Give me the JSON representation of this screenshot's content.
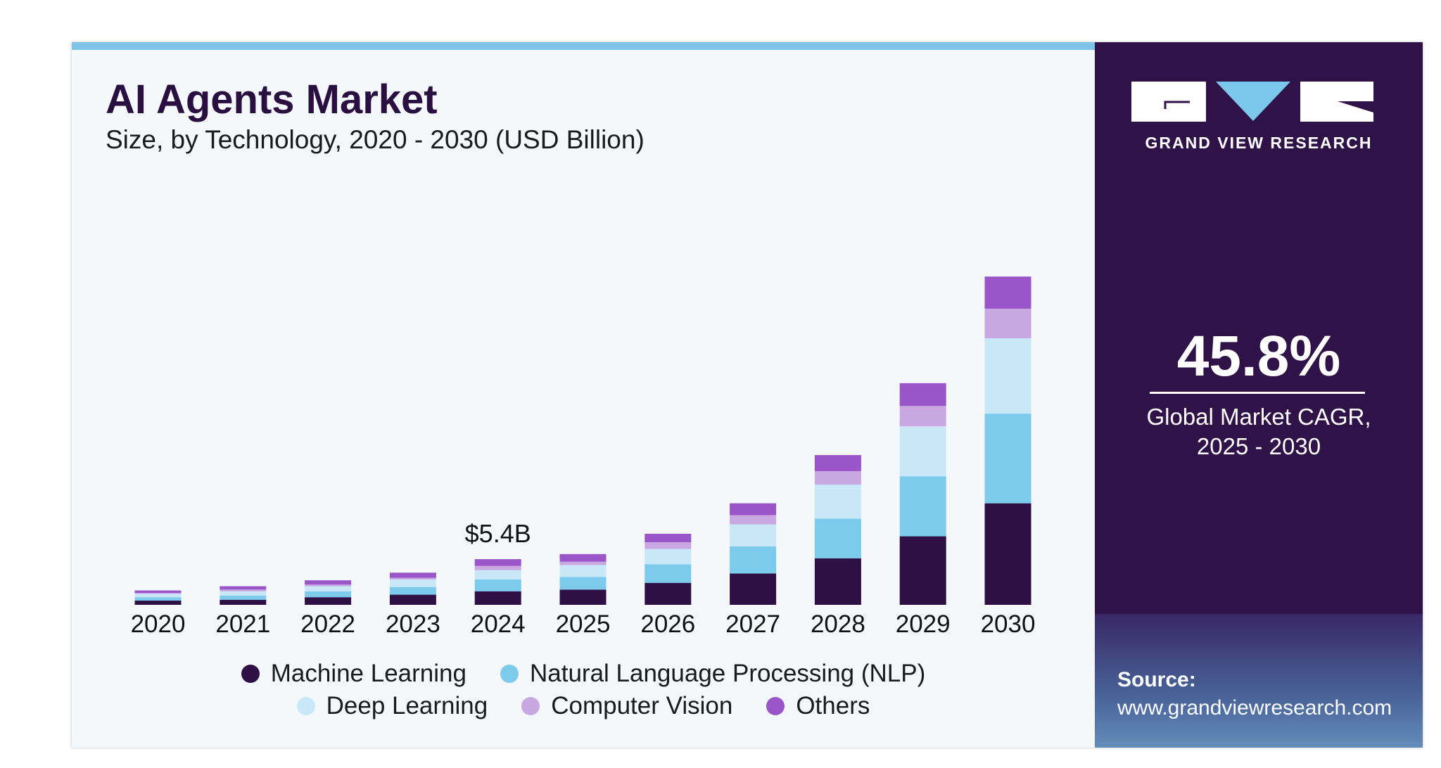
{
  "title": "AI Agents Market",
  "subtitle": "Size, by Technology, 2020 - 2030 (USD Billion)",
  "brand": {
    "name": "GRAND VIEW RESEARCH"
  },
  "highlight": {
    "value": "45.8%",
    "label_line1": "Global Market CAGR,",
    "label_line2": "2025 - 2030"
  },
  "source": {
    "label": "Source:",
    "url": "www.grandviewresearch.com"
  },
  "colors": {
    "Machine Learning": "#2e1045",
    "Natural Language Processing (NLP)": "#7ccaec",
    "Deep Learning": "#c8e8f8",
    "Computer Vision": "#c9a8e2",
    "Others": "#9a55c8",
    "panel": "#2f1248",
    "accent": "#7fc4e6"
  },
  "chart_data": {
    "type": "bar",
    "stacked": true,
    "title": "AI Agents Market",
    "subtitle": "Size, by Technology, 2020 - 2030 (USD Billion)",
    "categories": [
      "2020",
      "2021",
      "2022",
      "2023",
      "2024",
      "2025",
      "2026",
      "2027",
      "2028",
      "2029",
      "2030"
    ],
    "series": [
      {
        "name": "Machine Learning",
        "values": [
          0.5,
          0.6,
          0.9,
          1.2,
          1.6,
          1.8,
          2.6,
          3.7,
          5.5,
          8.1,
          12.0
        ]
      },
      {
        "name": "Natural Language Processing (NLP)",
        "values": [
          0.4,
          0.5,
          0.7,
          0.9,
          1.4,
          1.5,
          2.2,
          3.2,
          4.7,
          7.1,
          10.6
        ]
      },
      {
        "name": "Deep Learning",
        "values": [
          0.4,
          0.5,
          0.6,
          0.9,
          1.1,
          1.4,
          1.8,
          2.6,
          4.0,
          5.9,
          8.9
        ]
      },
      {
        "name": "Computer Vision",
        "values": [
          0.1,
          0.2,
          0.2,
          0.2,
          0.5,
          0.4,
          0.8,
          1.1,
          1.6,
          2.4,
          3.5
        ]
      },
      {
        "name": "Others",
        "values": [
          0.3,
          0.4,
          0.5,
          0.6,
          0.8,
          0.9,
          1.0,
          1.4,
          1.9,
          2.7,
          3.8
        ]
      }
    ],
    "annotations": [
      {
        "category": "2024",
        "text": "$5.4B"
      }
    ],
    "ylim": [
      0,
      40
    ],
    "grid": false,
    "y_axis_visible": false,
    "legend": "bottom"
  }
}
